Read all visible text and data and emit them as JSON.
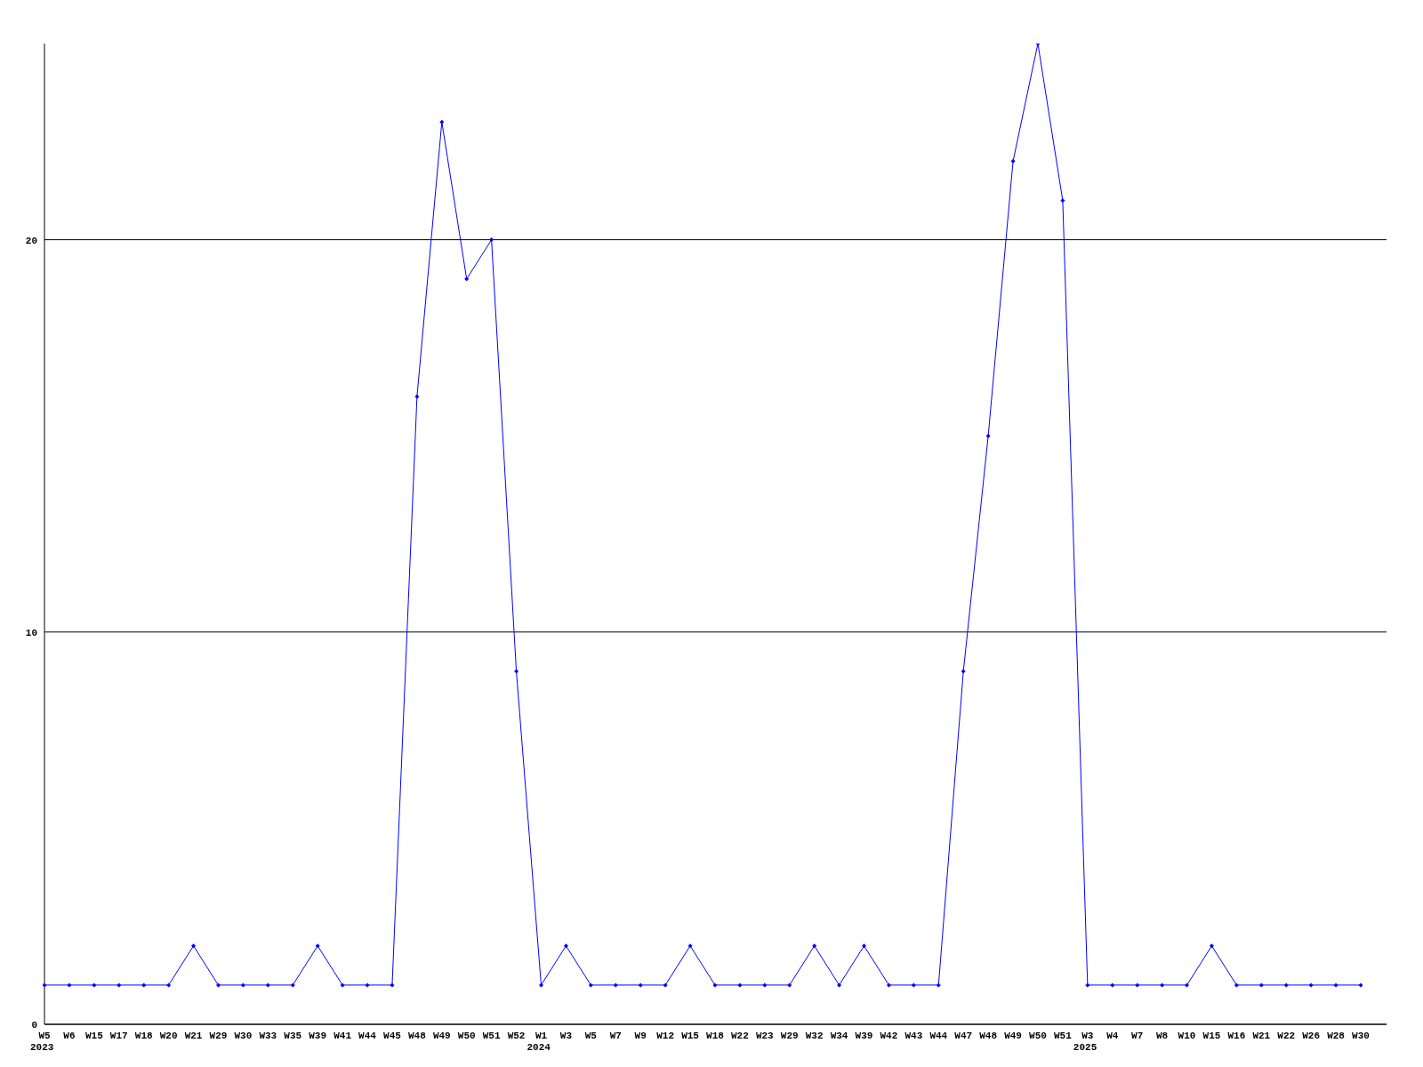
{
  "chart_data": {
    "type": "line",
    "categories": [
      "W5\n2023",
      "W6",
      "W15",
      "W17",
      "W18",
      "W20",
      "W21",
      "W29",
      "W30",
      "W33",
      "W35",
      "W39",
      "W41",
      "W44",
      "W45",
      "W48",
      "W49",
      "W50",
      "W51",
      "W52",
      "W1\n2024",
      "W3",
      "W5",
      "W7",
      "W9",
      "W12",
      "W15",
      "W18",
      "W22",
      "W23",
      "W29",
      "W32",
      "W34",
      "W39",
      "W42",
      "W43",
      "W44",
      "W47",
      "W48",
      "W49",
      "W50",
      "W51",
      "W3\n2025",
      "W4",
      "W7",
      "W8",
      "W10",
      "W15",
      "W16",
      "W21",
      "W22",
      "W26",
      "W28",
      "W30"
    ],
    "series": [
      {
        "color": "#0000ff",
        "values": [
          1,
          1,
          1,
          1,
          1,
          1,
          2,
          1,
          1,
          1,
          1,
          2,
          1,
          1,
          1,
          16,
          23,
          19,
          20,
          9,
          1,
          2,
          1,
          1,
          1,
          1,
          2,
          1,
          1,
          1,
          1,
          2,
          1,
          2,
          1,
          1,
          1,
          9,
          15,
          22,
          25,
          21,
          1,
          1,
          1,
          1,
          1,
          2,
          1,
          1,
          1,
          1,
          1,
          1
        ]
      }
    ],
    "ylim": [
      0,
      25
    ],
    "yticks": [
      0,
      10,
      20
    ],
    "grid": "y",
    "marker": "diamond",
    "line_style": "solid"
  }
}
